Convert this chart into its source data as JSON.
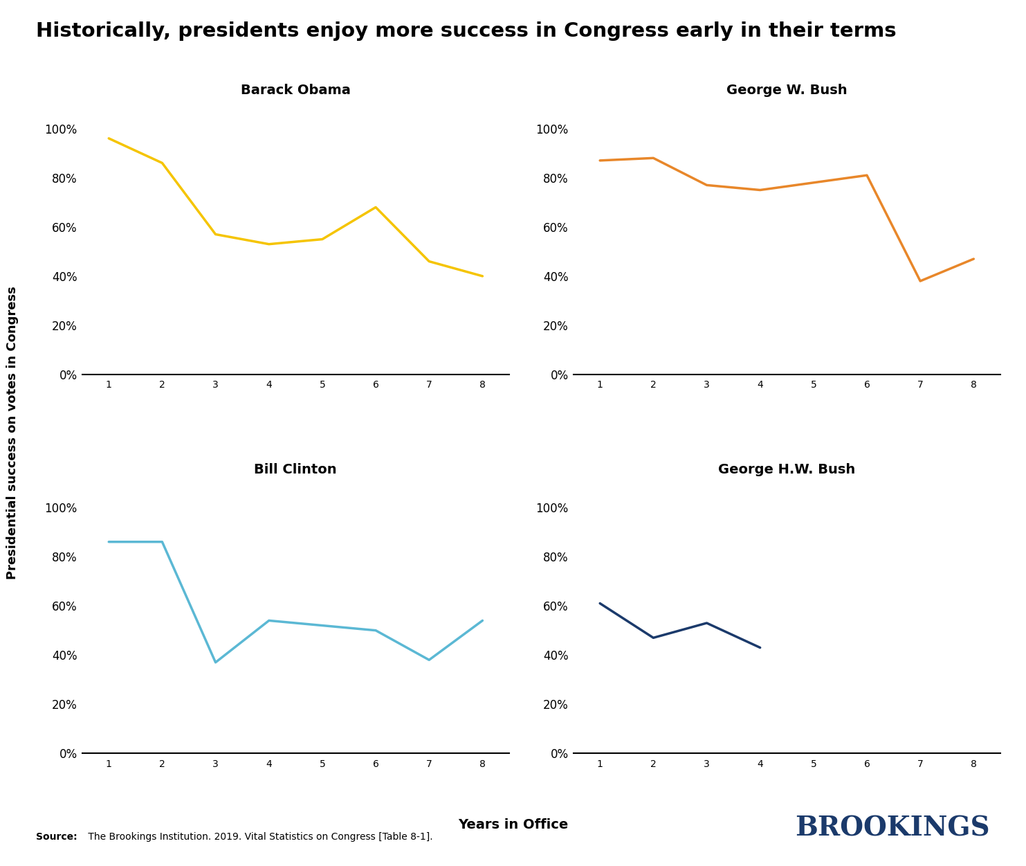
{
  "title": "Historically, presidents enjoy more success in Congress early in their terms",
  "ylabel": "Presidential success on votes in Congress",
  "xlabel": "Years in Office",
  "source_bold": "Source:",
  "source_rest": " The Brookings Institution. 2019. Vital Statistics on Congress [Table 8-1].",
  "brookings_text": "BROOKINGS",
  "subplots": [
    {
      "name": "Barack Obama",
      "x": [
        1,
        2,
        3,
        4,
        5,
        6,
        7,
        8
      ],
      "y": [
        96,
        86,
        57,
        53,
        55,
        68,
        46,
        40
      ],
      "color": "#F5C400"
    },
    {
      "name": "George W. Bush",
      "x": [
        1,
        2,
        3,
        4,
        5,
        6,
        7,
        8
      ],
      "y": [
        87,
        88,
        77,
        75,
        78,
        81,
        38,
        47
      ],
      "color": "#E8872A"
    },
    {
      "name": "Bill Clinton",
      "x": [
        1,
        2,
        3,
        4,
        5,
        6,
        7,
        8
      ],
      "y": [
        86,
        86,
        37,
        54,
        52,
        50,
        38,
        54
      ],
      "color": "#5BB8D4"
    },
    {
      "name": "George H.W. Bush",
      "x": [
        1,
        2,
        3,
        4
      ],
      "y": [
        61,
        47,
        53,
        43
      ],
      "color": "#1B3A6B"
    }
  ],
  "ylim_top": 1.1,
  "yticks": [
    0,
    20,
    40,
    60,
    80,
    100
  ],
  "ytick_labels": [
    "0%",
    "20%",
    "40%",
    "60%",
    "80%",
    "100%"
  ],
  "xticks": [
    1,
    2,
    3,
    4,
    5,
    6,
    7,
    8
  ],
  "background_color": "#FFFFFF",
  "title_fontsize": 21,
  "ylabel_fontsize": 13,
  "xlabel_fontsize": 14,
  "tick_fontsize": 12,
  "subplot_title_fontsize": 14,
  "source_fontsize": 10,
  "brookings_fontsize": 28
}
